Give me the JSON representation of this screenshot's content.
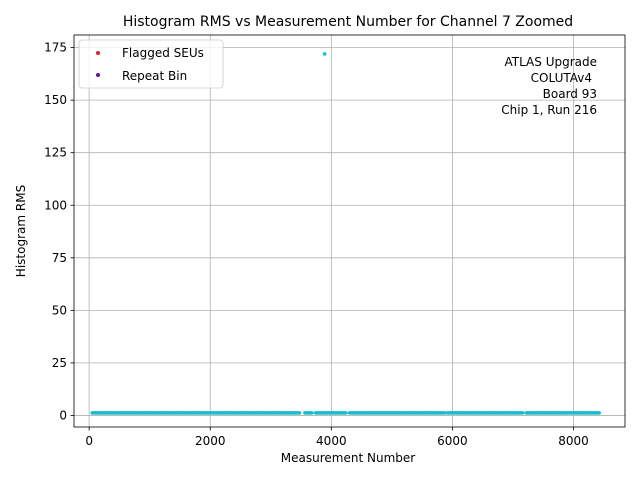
{
  "chart_data": {
    "type": "scatter",
    "title": "Histogram RMS vs Measurement Number for Channel 7 Zoomed",
    "xlabel": "Measurement Number",
    "ylabel": "Histogram RMS",
    "xlim": [
      -250,
      8850
    ],
    "ylim": [
      -5.5,
      181
    ],
    "xticks": [
      0,
      2000,
      4000,
      6000,
      8000
    ],
    "yticks": [
      0,
      25,
      50,
      75,
      100,
      125,
      150,
      175
    ],
    "grid": true,
    "legend_position": "top-left",
    "legend": [
      {
        "name": "Flagged SEUs",
        "color": "#d62728"
      },
      {
        "name": "Repeat Bin",
        "color": "#6a0f8e"
      }
    ],
    "annotation": [
      "ATLAS Upgrade",
      "COLUTAv4",
      "Board 93",
      "Chip 1, Run 216"
    ],
    "series": [
      {
        "color": "#17becf",
        "baseline": {
          "x_start": 50,
          "x_end": 8430,
          "y": 1.2
        },
        "gaps": [
          [
            3480,
            3560
          ],
          [
            3690,
            3730
          ],
          [
            4250,
            4290
          ],
          [
            5880,
            5910
          ],
          [
            7170,
            7210
          ]
        ],
        "outliers": [
          {
            "x": 3890,
            "y": 172
          }
        ]
      },
      {
        "name": "Flagged SEUs",
        "color": "#d62728",
        "points": []
      },
      {
        "name": "Repeat Bin",
        "color": "#6a0f8e",
        "points": []
      }
    ]
  }
}
